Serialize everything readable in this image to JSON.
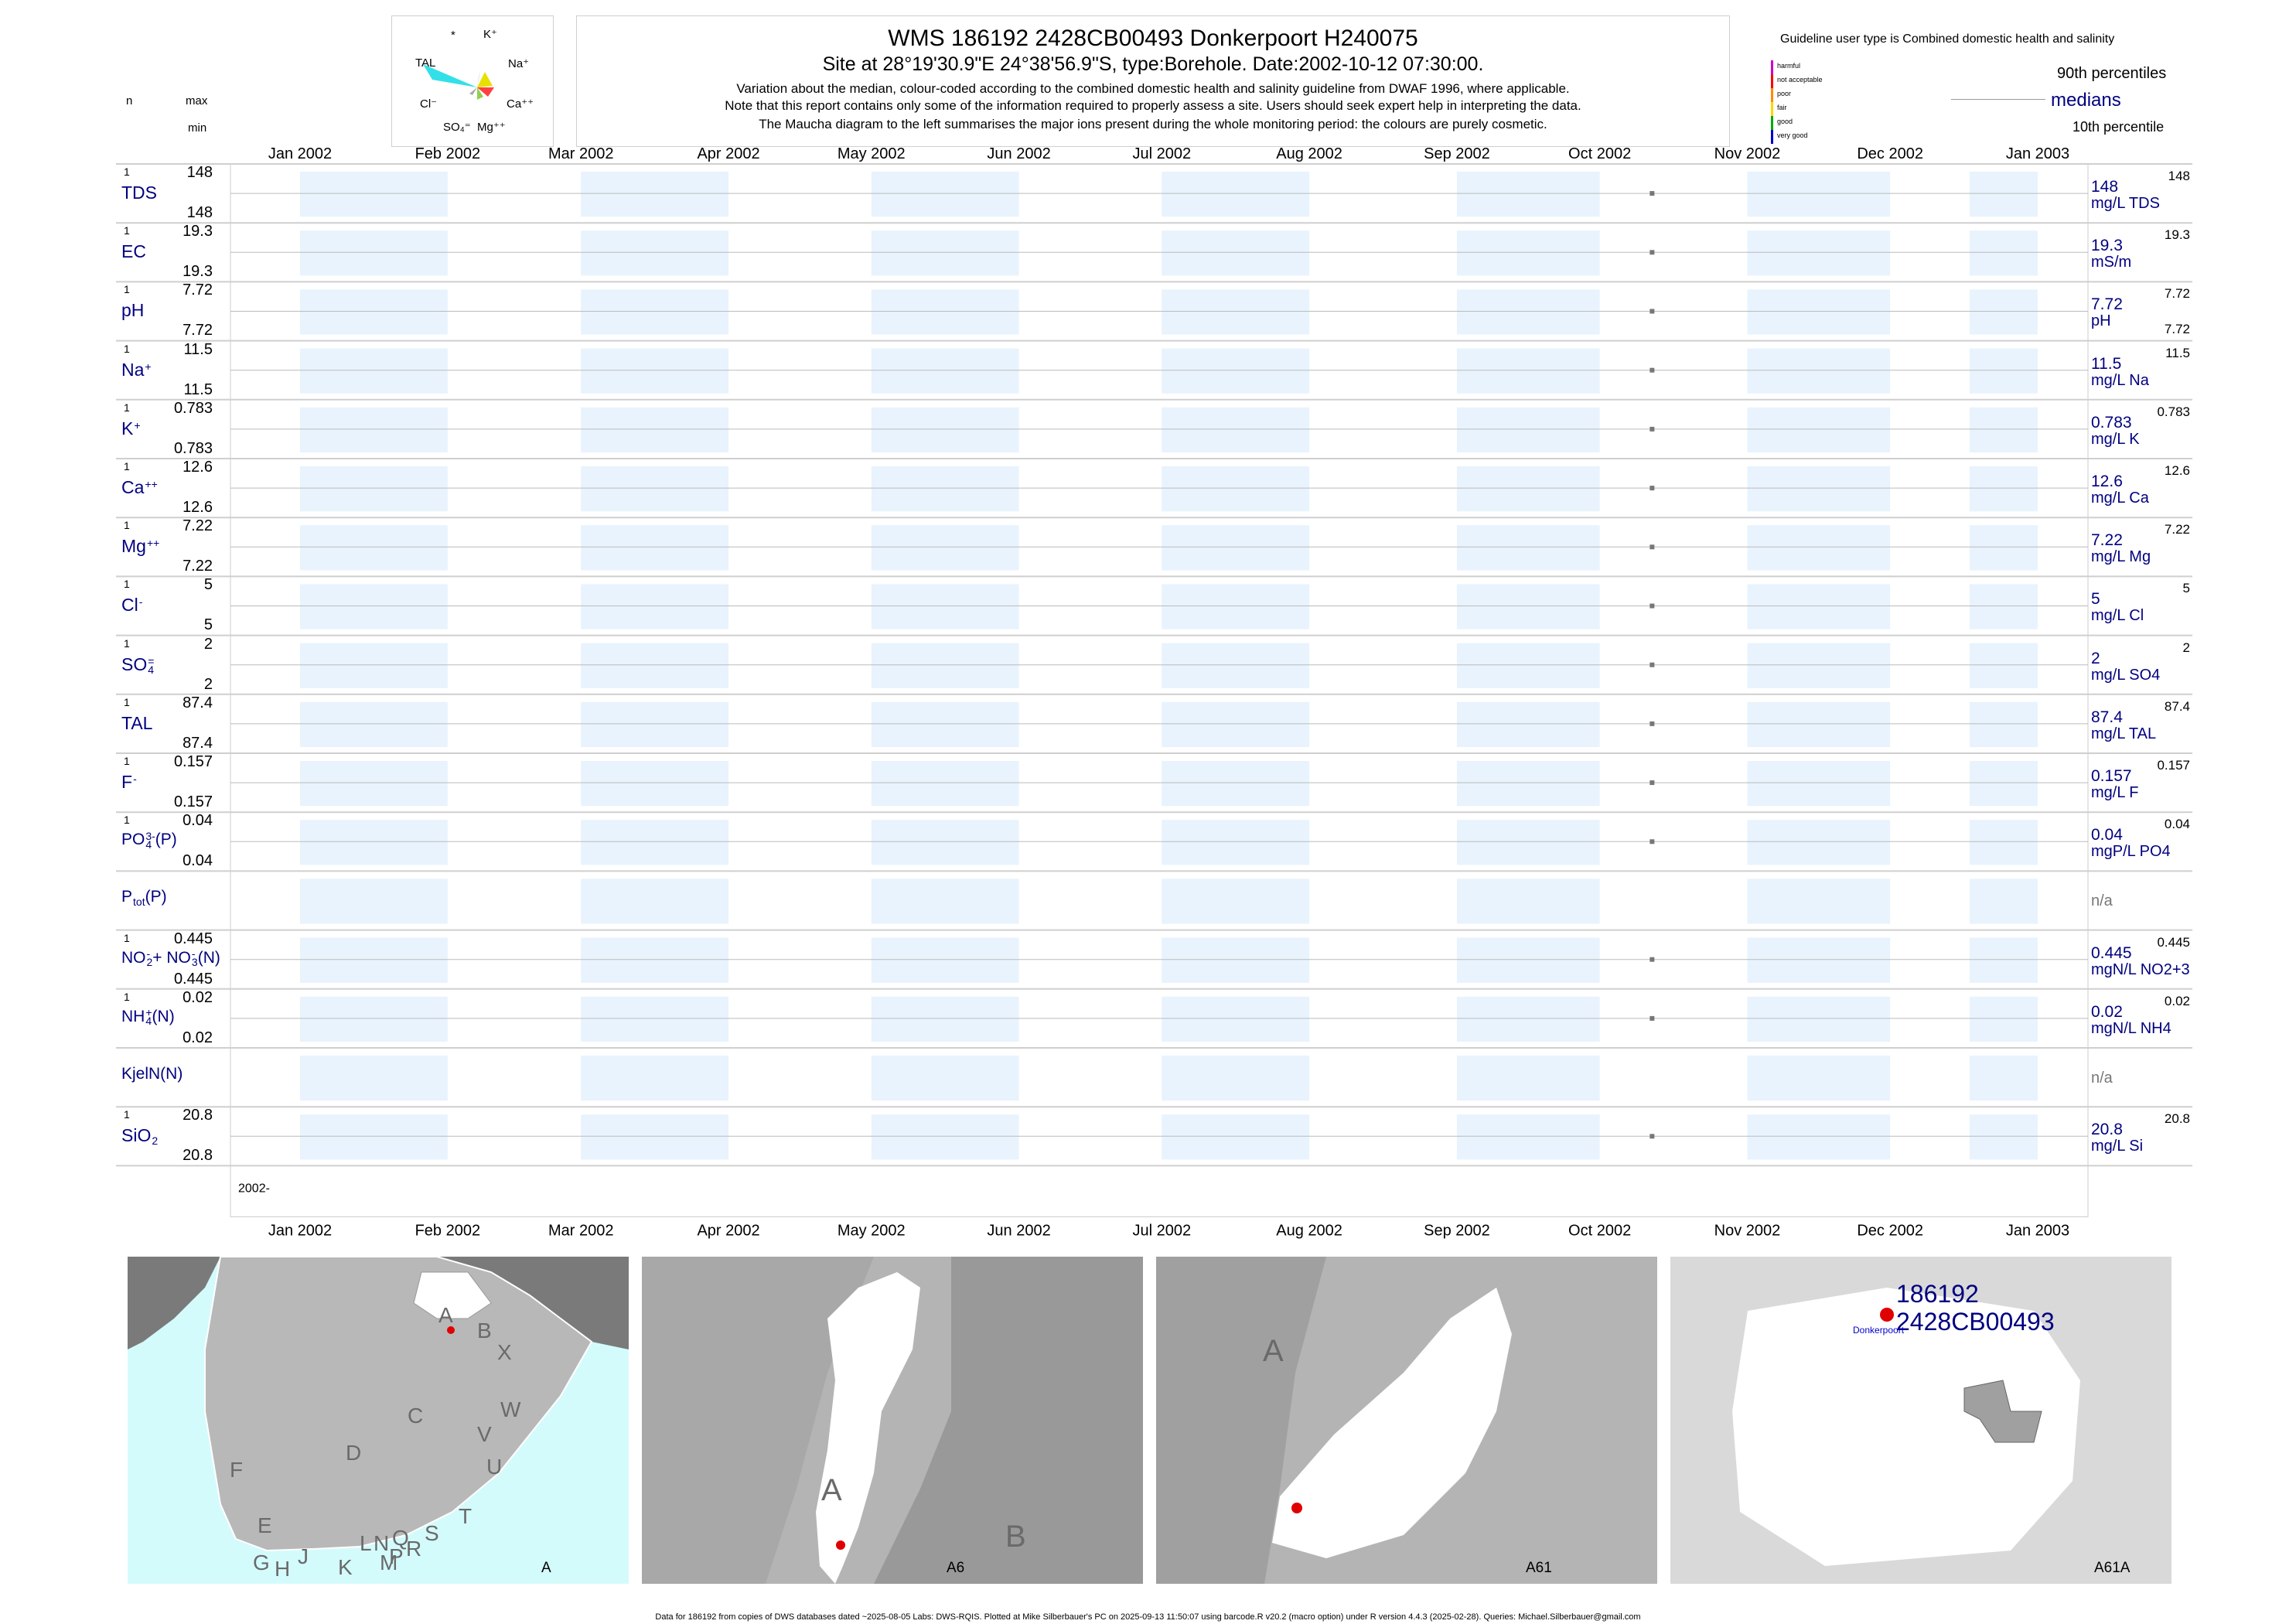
{
  "header": {
    "title": "WMS 186192 2428CB00493 Donkerpoort H240075",
    "subtitle": "Site at 28°19'30.9\"E 24°38'56.9\"S, type:Borehole. Date:2002-10-12 07:30:00.",
    "note1": "Variation about the median,  colour-coded according to the combined domestic health and salinity guideline from DWAF 1996, where applicable.",
    "note2": "Note that this report contains only some of the information required to properly assess a site. Users should seek expert help in interpreting the data.",
    "note3": "The Maucha diagram to the left summarises the major ions present during the whole monitoring period: the colours are purely cosmetic."
  },
  "left_header": {
    "n": "n",
    "max": "max",
    "min": "min"
  },
  "maucha": {
    "labels": {
      "star": "*",
      "k": "K⁺",
      "tal": "TAL",
      "na": "Na⁺",
      "cl": "Cl⁻",
      "ca": "Ca⁺⁺",
      "so4": "SO₄⁼",
      "mg": "Mg⁺⁺"
    },
    "colors": {
      "tal": "#33e0e8",
      "na": "#e8e000",
      "ca": "#ff4040",
      "mg": "#8fd14f",
      "k": "#555555"
    }
  },
  "guideline": {
    "title": "Guideline user type is Combined domestic health and salinity",
    "classes": [
      {
        "label": "harmful",
        "color": "#cc00cc"
      },
      {
        "label": "not acceptable",
        "color": "#ff0000"
      },
      {
        "label": "poor",
        "color": "#ff8c00"
      },
      {
        "label": "fair",
        "color": "#ffd700"
      },
      {
        "label": "good",
        "color": "#00aa00"
      },
      {
        "label": "very good",
        "color": "#0000cc"
      }
    ],
    "p90": "90th percentiles",
    "median": "medians",
    "p10": "10th percentile"
  },
  "chart_data": {
    "type": "scatter",
    "x_axis": {
      "range": [
        "2002-01-01",
        "2003-01-01"
      ],
      "ticks": [
        "Jan 2002",
        "Feb 2002",
        "Mar 2002",
        "Apr 2002",
        "May 2002",
        "Jun 2002",
        "Jul 2002",
        "Aug 2002",
        "Sep 2002",
        "Oct 2002",
        "Nov 2002",
        "Dec 2002",
        "Jan 2003"
      ],
      "year_label": "2002-"
    },
    "sample_date": "2002-10-12",
    "panels": [
      {
        "name": "TDS",
        "n": "1",
        "max": "148",
        "min": "148",
        "median": "148",
        "unit": "mg/L TDS",
        "p90": "148",
        "value": 148
      },
      {
        "name": "EC",
        "n": "1",
        "max": "19.3",
        "min": "19.3",
        "median": "19.3",
        "unit": "mS/m",
        "p90": "19.3",
        "value": 19.3
      },
      {
        "name": "pH",
        "n": "1",
        "max": "7.72",
        "min": "7.72",
        "median": "7.72",
        "unit": "pH",
        "p90": "7.72",
        "p10": "7.72",
        "value": 7.72
      },
      {
        "name": "Na",
        "sup": "+",
        "n": "1",
        "max": "11.5",
        "min": "11.5",
        "median": "11.5",
        "unit": "mg/L Na",
        "p90": "11.5",
        "value": 11.5
      },
      {
        "name": "K",
        "sup": "+",
        "n": "1",
        "max": "0.783",
        "min": "0.783",
        "median": "0.783",
        "unit": "mg/L K",
        "p90": "0.783",
        "value": 0.783
      },
      {
        "name": "Ca",
        "sup": "++",
        "n": "1",
        "max": "12.6",
        "min": "12.6",
        "median": "12.6",
        "unit": "mg/L Ca",
        "p90": "12.6",
        "value": 12.6
      },
      {
        "name": "Mg",
        "sup": "++",
        "n": "1",
        "max": "7.22",
        "min": "7.22",
        "median": "7.22",
        "unit": "mg/L Mg",
        "p90": "7.22",
        "value": 7.22
      },
      {
        "name": "Cl",
        "sup": "-",
        "n": "1",
        "max": "5",
        "min": "5",
        "median": "5",
        "unit": "mg/L Cl",
        "p90": "5",
        "value": 5
      },
      {
        "name": "SO",
        "sub": "4",
        "sup": "=",
        "n": "1",
        "max": "2",
        "min": "2",
        "median": "2",
        "unit": "mg/L SO4",
        "p90": "2",
        "value": 2
      },
      {
        "name": "TAL",
        "n": "1",
        "max": "87.4",
        "min": "87.4",
        "median": "87.4",
        "unit": "mg/L TAL",
        "p90": "87.4",
        "value": 87.4
      },
      {
        "name": "F",
        "sup": "-",
        "n": "1",
        "max": "0.157",
        "min": "0.157",
        "median": "0.157",
        "unit": "mg/L F",
        "p90": "0.157",
        "value": 0.157
      },
      {
        "name": "PO",
        "sub": "4",
        "sup": "3-",
        "tail": "(P)",
        "n": "1",
        "max": "0.04",
        "min": "0.04",
        "median": "0.04",
        "unit": "mgP/L PO4",
        "p90": "0.04",
        "value": 0.04
      },
      {
        "name": "P",
        "sub": "tot",
        "tail": "(P)",
        "na": "n/a"
      },
      {
        "name": "NO",
        "sub": "2",
        "sup": "-",
        "tail": "+ NO",
        "sub2": "3",
        "sup2": "-",
        "tail2": "(N)",
        "n": "1",
        "max": "0.445",
        "min": "0.445",
        "median": "0.445",
        "unit": "mgN/L NO2+3",
        "p90": "0.445",
        "value": 0.445
      },
      {
        "name": "NH",
        "sub": "4",
        "sup": "+",
        "tail": "(N)",
        "n": "1",
        "max": "0.02",
        "min": "0.02",
        "median": "0.02",
        "unit": "mgN/L NH4",
        "p90": "0.02",
        "value": 0.02
      },
      {
        "name": "KjelN(N)",
        "na": "n/a"
      },
      {
        "name": "SiO",
        "sub": "2",
        "n": "1",
        "max": "20.8",
        "min": "20.8",
        "median": "20.8",
        "unit": "mg/L Si",
        "p90": "20.8",
        "value": 20.8
      }
    ]
  },
  "maps": {
    "map1": {
      "caption": "A",
      "letters": [
        "A",
        "B",
        "X",
        "C",
        "W",
        "D",
        "V",
        "U",
        "F",
        "T",
        "E",
        "S",
        "L",
        "N",
        "Q",
        "R",
        "P",
        "G",
        "H",
        "J",
        "K",
        "M"
      ]
    },
    "map2": {
      "caption": "A6",
      "letters": [
        "A",
        "B"
      ]
    },
    "map3": {
      "caption": "A61",
      "letters": [
        "A"
      ]
    },
    "map4": {
      "caption": "A61A",
      "site_id": "186192",
      "site_code": "2428CB00493",
      "place": "Donkerpoort"
    }
  },
  "footer": "Data for 186192 from copies of DWS databases dated ~2025-08-05 Labs: DWS-RQIS. Plotted at Mike Silberbauer's PC on 2025-09-13 11:50:07 using barcode.R v20.2 (macro option) under R version 4.4.3 (2025-02-28). Queries: Michael.Silberbauer@gmail.com"
}
